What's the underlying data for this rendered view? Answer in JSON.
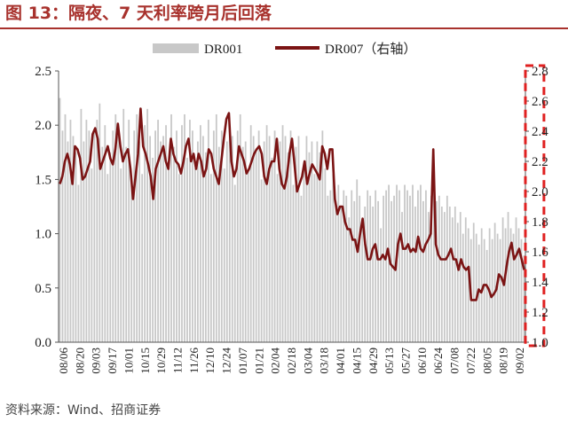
{
  "title": "图 13：隔夜、7 天利率跨月后回落",
  "source": "资料来源：Wind、招商证券",
  "chart_data": {
    "type": "bar+line",
    "legend": {
      "position": "top",
      "items": [
        {
          "name": "DR001",
          "color": "#c8c8c8"
        },
        {
          "name": "DR007（右轴）",
          "color": "#7b1414"
        }
      ]
    },
    "left_axis": {
      "min": 0.0,
      "max": 2.5,
      "ticks": [
        "0.0",
        "0.5",
        "1.0",
        "1.5",
        "2.0",
        "2.5"
      ]
    },
    "right_axis": {
      "min": 1.0,
      "max": 2.8,
      "ticks": [
        "1.0",
        "1.2",
        "1.4",
        "1.6",
        "1.8",
        "2.0",
        "2.2",
        "2.4",
        "2.6",
        "2.8"
      ]
    },
    "x_ticks": [
      "08/06",
      "08/20",
      "09/03",
      "09/17",
      "10/01",
      "10/15",
      "10/29",
      "11/12",
      "11/26",
      "12/10",
      "12/24",
      "01/07",
      "01/21",
      "02/04",
      "02/18",
      "03/04",
      "03/18",
      "04/01",
      "04/15",
      "04/29",
      "05/13",
      "05/27",
      "06/10",
      "06/24",
      "07/08",
      "07/22",
      "08/05",
      "08/19",
      "09/02"
    ],
    "series": [
      {
        "name": "DR001",
        "axis": "left",
        "type": "bar",
        "color": "#c8c8c8",
        "values": [
          2.25,
          1.95,
          2.1,
          1.85,
          2.05,
          1.9,
          1.75,
          1.45,
          2.15,
          1.85,
          2.05,
          1.95,
          1.6,
          1.95,
          2.05,
          2.2,
          1.8,
          2.0,
          1.55,
          1.75,
          1.95,
          2.1,
          1.9,
          1.6,
          2.15,
          1.8,
          2.05,
          1.5,
          1.95,
          2.1,
          1.85,
          1.55,
          2.0,
          2.15,
          1.9,
          1.7,
          1.95,
          2.05,
          1.85,
          1.9,
          2.0,
          1.65,
          2.1,
          1.8,
          1.95,
          1.55,
          2.0,
          2.1,
          1.7,
          2.05,
          1.95,
          1.6,
          1.85,
          2.0,
          1.9,
          1.75,
          2.05,
          1.55,
          1.95,
          2.1,
          1.8,
          1.95,
          1.6,
          1.85,
          2.0,
          1.9,
          1.45,
          1.95,
          2.1,
          1.8,
          1.85,
          1.6,
          2.0,
          1.9,
          1.75,
          1.95,
          1.5,
          1.85,
          2.0,
          1.9,
          1.7,
          1.95,
          1.55,
          1.85,
          2.0,
          1.9,
          1.75,
          1.95,
          1.45,
          1.8,
          1.9,
          1.35,
          1.65,
          1.9,
          1.75,
          1.85,
          1.55,
          1.85,
          1.75,
          1.95,
          1.6,
          1.35,
          1.4,
          1.55,
          1.3,
          1.45,
          1.25,
          1.4,
          1.35,
          1.15,
          1.4,
          1.3,
          1.5,
          1.35,
          1.1,
          1.25,
          1.4,
          1.35,
          1.25,
          1.4,
          1.3,
          1.05,
          1.35,
          1.4,
          1.45,
          1.3,
          1.35,
          1.45,
          1.4,
          1.2,
          1.45,
          1.4,
          1.35,
          1.45,
          1.25,
          1.4,
          1.45,
          1.3,
          1.4,
          1.2,
          1.35,
          1.45,
          1.3,
          1.35,
          1.25,
          1.2,
          1.35,
          1.25,
          1.15,
          1.25,
          1.1,
          1.2,
          1.0,
          1.15,
          1.05,
          0.95,
          1.1,
          1.0,
          0.9,
          1.05,
          0.95,
          0.85,
          1.05,
          0.95,
          1.1,
          1.0,
          0.95,
          1.15,
          1.05,
          1.2,
          1.05,
          1.0,
          1.15,
          1.05,
          0.95,
          0.8
        ]
      },
      {
        "name": "DR007（右轴）",
        "axis": "right",
        "type": "line",
        "color": "#7b1414",
        "values": [
          2.05,
          2.1,
          2.2,
          2.25,
          2.18,
          2.05,
          2.3,
          2.28,
          2.22,
          2.08,
          2.1,
          2.15,
          2.2,
          2.38,
          2.42,
          2.35,
          2.15,
          2.2,
          2.25,
          2.3,
          2.22,
          2.18,
          2.28,
          2.45,
          2.3,
          2.2,
          2.25,
          2.28,
          2.15,
          1.95,
          2.1,
          2.25,
          2.55,
          2.3,
          2.25,
          2.18,
          2.1,
          1.95,
          2.15,
          2.2,
          2.25,
          2.3,
          2.2,
          2.15,
          2.35,
          2.25,
          2.2,
          2.18,
          2.12,
          2.2,
          2.3,
          2.35,
          2.2,
          2.25,
          2.15,
          2.25,
          2.2,
          2.1,
          2.15,
          2.28,
          2.25,
          2.15,
          2.1,
          2.05,
          2.2,
          2.35,
          2.48,
          2.52,
          2.2,
          2.1,
          2.15,
          2.3,
          2.25,
          2.2,
          2.12,
          2.15,
          2.2,
          2.25,
          2.28,
          2.3,
          2.25,
          2.1,
          2.05,
          2.15,
          2.2,
          2.2,
          2.35,
          2.15,
          2.05,
          2.02,
          2.1,
          2.25,
          2.35,
          2.18,
          2.0,
          2.05,
          2.1,
          2.2,
          2.05,
          2.12,
          2.18,
          2.15,
          2.12,
          2.08,
          2.3,
          2.25,
          2.15,
          2.28,
          2.28,
          1.95,
          1.85,
          1.9,
          1.9,
          1.8,
          1.75,
          1.75,
          1.68,
          1.68,
          1.6,
          1.72,
          1.82,
          1.65,
          1.55,
          1.55,
          1.62,
          1.65,
          1.55,
          1.55,
          1.58,
          1.55,
          1.62,
          1.52,
          1.5,
          1.48,
          1.65,
          1.72,
          1.62,
          1.62,
          1.65,
          1.6,
          1.62,
          1.6,
          1.7,
          1.62,
          1.6,
          1.65,
          1.68,
          1.72,
          2.28,
          1.65,
          1.58,
          1.55,
          1.55,
          1.55,
          1.58,
          1.62,
          1.55,
          1.55,
          1.48,
          1.55,
          1.5,
          1.48,
          1.5,
          1.28,
          1.28,
          1.28,
          1.35,
          1.33,
          1.38,
          1.38,
          1.35,
          1.3,
          1.32,
          1.35,
          1.45,
          1.43,
          1.38,
          1.5,
          1.6,
          1.66,
          1.55,
          1.58,
          1.62,
          1.55,
          1.48
        ]
      }
    ],
    "highlight": {
      "style": "dashed",
      "color": "#e02020",
      "from_index": 176,
      "to_index": 182
    }
  }
}
